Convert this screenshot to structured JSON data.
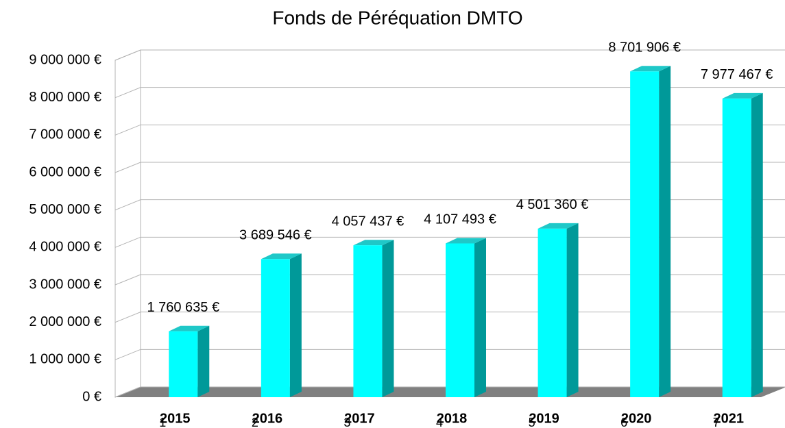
{
  "chart_data": {
    "type": "bar3d",
    "title": "Fonds de Péréquation DMTO",
    "categories": [
      "2015",
      "2016",
      "2017",
      "2018",
      "2019",
      "2020",
      "2021"
    ],
    "x2_categories": [
      "1",
      "2",
      "3",
      "4",
      "5",
      "6",
      "7"
    ],
    "values": [
      1760635,
      3689546,
      4057437,
      4107493,
      4501360,
      8701906,
      7977467
    ],
    "value_labels": [
      "1 760 635 €",
      "3 689 546 €",
      "4 057 437 €",
      "4 107 493 €",
      "4 501 360 €",
      "8 701 906 €",
      "7 977 467 €"
    ],
    "color": "#00ffff",
    "ylim": [
      0,
      9000000
    ],
    "yticks": [
      {
        "value": 0,
        "label": "0 €"
      },
      {
        "value": 1000000,
        "label": "1 000 000 €"
      },
      {
        "value": 2000000,
        "label": "2 000 000 €"
      },
      {
        "value": 3000000,
        "label": "3 000 000 €"
      },
      {
        "value": 4000000,
        "label": "4 000 000 €"
      },
      {
        "value": 5000000,
        "label": "5 000 000 €"
      },
      {
        "value": 6000000,
        "label": "6 000 000 €"
      },
      {
        "value": 7000000,
        "label": "7 000 000 €"
      },
      {
        "value": 8000000,
        "label": "8 000 000 €"
      },
      {
        "value": 9000000,
        "label": "9 000 000 €"
      }
    ],
    "grid": true
  }
}
